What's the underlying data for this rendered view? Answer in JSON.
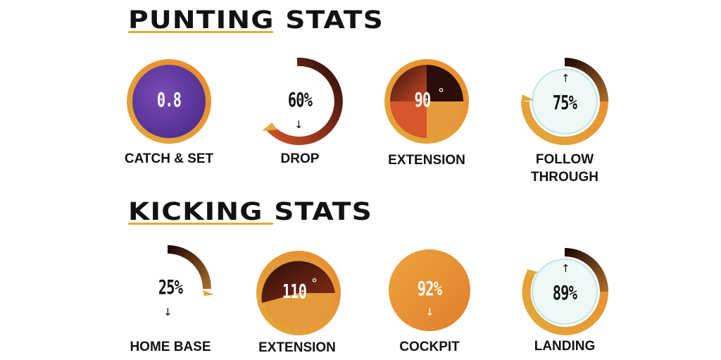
{
  "punting": {
    "title_word1": "PUNTING",
    "title_word2": "STATS",
    "stats": [
      {
        "value": "0.8",
        "label": "CATCH & SET"
      },
      {
        "value": "60%",
        "label": "DROP",
        "arrow": "↓"
      },
      {
        "value": "90",
        "degree": "°",
        "label": "EXTENSION"
      },
      {
        "value": "75%",
        "label_line1": "FOLLOW",
        "label_line2": "THROUGH",
        "arrow": "↑"
      }
    ]
  },
  "kicking": {
    "title_word1": "KICKING",
    "title_word2": "STATS",
    "stats": [
      {
        "value": "25%",
        "label": "HOME BASE",
        "arrow": "↓"
      },
      {
        "value": "110",
        "degree": "°",
        "label": "EXTENSION"
      },
      {
        "value": "92%",
        "label": "COCKPIT",
        "arrow": "↓"
      },
      {
        "value": "89%",
        "label": "LANDING",
        "arrow": "↑"
      }
    ]
  },
  "colors": {
    "gold": "#e2a93b",
    "orange": "#e8892f",
    "purple": "#5f3a9e",
    "dark_brown": "#2a0e0a",
    "rust": "#c0482a",
    "ice": "#eef8f7"
  }
}
